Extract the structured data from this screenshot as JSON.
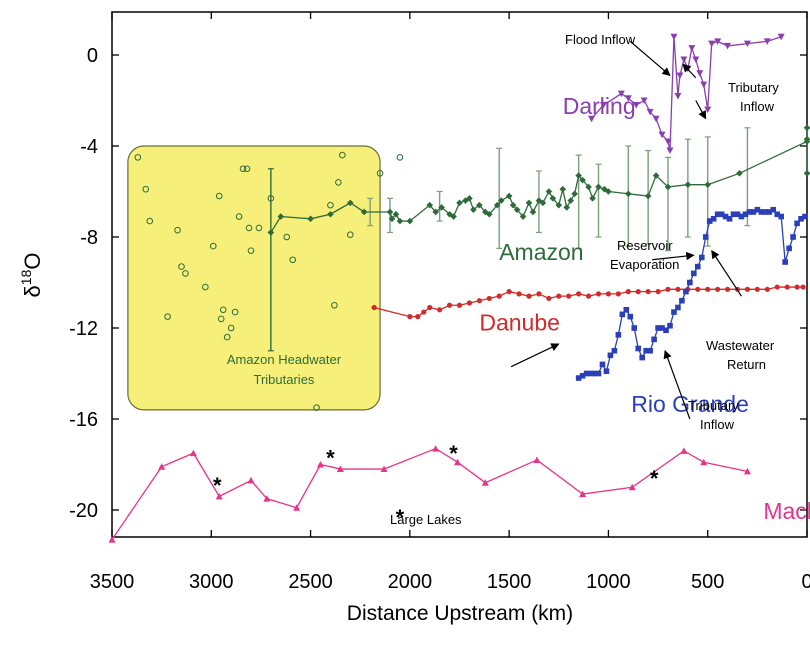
{
  "chart_data": {
    "type": "line",
    "title": "",
    "xlabel": "Distance Upstream (km)",
    "ylabel": "δ18O",
    "ylabel_main": "δ",
    "ylabel_sup": "18",
    "ylabel_tail": "O",
    "xlim": [
      3500,
      0
    ],
    "ylim": [
      -22,
      2
    ],
    "x_ticks": [
      3500,
      3000,
      2500,
      2000,
      1500,
      1000,
      500,
      0
    ],
    "x_tick_labels": [
      "3500",
      "3000",
      "2500",
      "2000",
      "1500",
      "1000",
      "500",
      "0"
    ],
    "y_ticks": [
      0,
      -4,
      -8,
      -12,
      -16,
      -20
    ],
    "y_tick_labels": [
      "0",
      "-4",
      "-8",
      "-12",
      "-16",
      "-20"
    ],
    "grid": false,
    "colors": {
      "amazon": "#2e6b3a",
      "amazon_errorbar": "#7aa07a",
      "darling": "#8a3fb0",
      "danube": "#d42a2a",
      "rio_grande": "#2a3fb8",
      "mackenzie": "#e8338a",
      "headwater_box": "#f6f07a",
      "headwater_border": "#6b6b3a"
    },
    "series": [
      {
        "name": "Darling",
        "marker": "triangle-down",
        "x": [
          1085,
          1025,
          935,
          900,
          860,
          820,
          790,
          760,
          730,
          700,
          690,
          670,
          650,
          640,
          620,
          600,
          580,
          560,
          540,
          520,
          500,
          480,
          450,
          400,
          300,
          200,
          130
        ],
        "y": [
          -2.8,
          -2.2,
          -1.7,
          -1.9,
          -2.2,
          -2.0,
          -2.5,
          -2.8,
          -3.5,
          -3.8,
          -4.2,
          0.8,
          -1.8,
          -0.9,
          -0.2,
          -0.6,
          0.3,
          -0.2,
          -0.8,
          -1.3,
          -2.4,
          0.5,
          0.6,
          0.4,
          0.5,
          0.6,
          0.8
        ]
      },
      {
        "name": "Amazon",
        "marker": "diamond",
        "x": [
          2700,
          2650,
          2500,
          2400,
          2300,
          2230,
          2100,
          2090,
          2070,
          2050,
          2000,
          1900,
          1870,
          1840,
          1800,
          1780,
          1750,
          1720,
          1700,
          1680,
          1650,
          1620,
          1600,
          1560,
          1540,
          1500,
          1480,
          1460,
          1430,
          1400,
          1380,
          1350,
          1330,
          1300,
          1280,
          1250,
          1230,
          1210,
          1190,
          1170,
          1150,
          1130,
          1100,
          1080,
          1050,
          1020,
          1000,
          900,
          800,
          760,
          700,
          600,
          500,
          340,
          0,
          0,
          0,
          0
        ],
        "y": [
          -7.8,
          -7.1,
          -7.2,
          -7.0,
          -6.5,
          -6.9,
          -6.9,
          -7.2,
          -7.0,
          -7.3,
          -7.3,
          -6.6,
          -6.9,
          -6.7,
          -7.0,
          -7.1,
          -6.5,
          -6.4,
          -6.3,
          -6.8,
          -6.6,
          -6.9,
          -7.0,
          -6.6,
          -6.4,
          -6.2,
          -6.6,
          -6.8,
          -7.1,
          -6.5,
          -6.9,
          -6.4,
          -6.5,
          -6.0,
          -6.3,
          -6.6,
          -5.9,
          -6.7,
          -6.4,
          -6.1,
          -5.3,
          -5.5,
          -5.8,
          -6.3,
          -5.8,
          -5.9,
          -6.0,
          -6.1,
          -6.2,
          -5.3,
          -5.8,
          -5.7,
          -5.7,
          -5.2,
          -3.8,
          -3.2,
          -3.7,
          -5.2
        ],
        "errors": [
          {
            "x": 2700,
            "low": -13.0,
            "high": -5.0
          },
          {
            "x": 2200,
            "low": -7.5,
            "high": -6.3
          },
          {
            "x": 2100,
            "low": -7.8,
            "high": -6.3
          },
          {
            "x": 1850,
            "low": -7.3,
            "high": -6.0
          },
          {
            "x": 1550,
            "low": -8.5,
            "high": -4.1
          },
          {
            "x": 1350,
            "low": -7.8,
            "high": -5.1
          },
          {
            "x": 1150,
            "low": -8.5,
            "high": -4.4
          },
          {
            "x": 1050,
            "low": -8.0,
            "high": -4.8
          },
          {
            "x": 900,
            "low": -8.4,
            "high": -4.0
          },
          {
            "x": 800,
            "low": -8.3,
            "high": -4.2
          },
          {
            "x": 700,
            "low": -8.6,
            "high": -4.5
          },
          {
            "x": 600,
            "low": -8.0,
            "high": -3.7
          },
          {
            "x": 500,
            "low": -8.4,
            "high": -3.6
          },
          {
            "x": 300,
            "low": -7.5,
            "high": -3.2
          }
        ]
      },
      {
        "name": "Amazon Headwater Tributaries",
        "marker": "open-circle",
        "x": [
          3370,
          3330,
          3310,
          3170,
          3150,
          3130,
          3030,
          2990,
          2960,
          2950,
          2940,
          2920,
          2900,
          2880,
          2860,
          2840,
          2820,
          2810,
          2800,
          2760,
          2700,
          2620,
          2590,
          2400,
          2380,
          2360,
          2340,
          2300,
          2150,
          2050,
          3220,
          2470
        ],
        "y": [
          -4.5,
          -5.9,
          -7.3,
          -7.7,
          -9.3,
          -9.6,
          -10.2,
          -8.4,
          -6.2,
          -11.6,
          -11.2,
          -12.4,
          -12.0,
          -11.3,
          -7.1,
          -5.0,
          -5.0,
          -7.6,
          -8.6,
          -7.6,
          -6.3,
          -8.0,
          -9.0,
          -6.6,
          -11.0,
          -5.6,
          -4.4,
          -7.9,
          -5.2,
          -4.5,
          -11.5,
          -15.5
        ]
      },
      {
        "name": "Danube",
        "marker": "circle",
        "x": [
          2180,
          2000,
          1960,
          1930,
          1900,
          1850,
          1800,
          1750,
          1700,
          1650,
          1600,
          1550,
          1500,
          1450,
          1400,
          1350,
          1300,
          1250,
          1200,
          1150,
          1100,
          1050,
          1000,
          950,
          900,
          850,
          800,
          750,
          700,
          650,
          600,
          550,
          500,
          450,
          400,
          350,
          300,
          250,
          200,
          150,
          100,
          50,
          20
        ],
        "y": [
          -11.1,
          -11.5,
          -11.5,
          -11.3,
          -11.1,
          -11.2,
          -11.0,
          -11.0,
          -10.9,
          -10.8,
          -10.7,
          -10.6,
          -10.4,
          -10.5,
          -10.6,
          -10.5,
          -10.7,
          -10.6,
          -10.6,
          -10.5,
          -10.6,
          -10.5,
          -10.5,
          -10.5,
          -10.4,
          -10.4,
          -10.4,
          -10.4,
          -10.3,
          -10.3,
          -10.3,
          -10.3,
          -10.3,
          -10.3,
          -10.3,
          -10.3,
          -10.3,
          -10.3,
          -10.3,
          -10.2,
          -10.2,
          -10.2,
          -10.2
        ]
      },
      {
        "name": "Rio Grande",
        "marker": "square",
        "x": [
          1150,
          1130,
          1110,
          1090,
          1070,
          1050,
          1030,
          1010,
          990,
          970,
          950,
          930,
          910,
          890,
          870,
          850,
          830,
          810,
          790,
          770,
          750,
          730,
          710,
          690,
          670,
          650,
          630,
          610,
          590,
          570,
          550,
          530,
          510,
          490,
          470,
          450,
          430,
          410,
          390,
          370,
          350,
          330,
          310,
          290,
          270,
          250,
          230,
          210,
          190,
          170,
          150,
          130,
          110,
          90,
          70,
          50,
          30,
          10
        ],
        "y": [
          -14.2,
          -14.1,
          -14.0,
          -14.0,
          -14.0,
          -14.0,
          -13.6,
          -13.9,
          -13.2,
          -13.0,
          -12.3,
          -11.4,
          -11.2,
          -11.5,
          -12.0,
          -12.9,
          -13.3,
          -13.0,
          -13.0,
          -12.5,
          -12.0,
          -12.0,
          -12.1,
          -11.9,
          -11.3,
          -11.1,
          -10.8,
          -10.4,
          -10.0,
          -9.6,
          -9.3,
          -8.9,
          -8.0,
          -7.3,
          -7.2,
          -7.0,
          -7.0,
          -7.1,
          -7.2,
          -7.0,
          -7.0,
          -7.1,
          -7.0,
          -6.9,
          -6.9,
          -6.8,
          -6.9,
          -6.9,
          -6.9,
          -6.8,
          -7.0,
          -7.1,
          -9.1,
          -8.5,
          -8.0,
          -7.4,
          -7.2,
          -7.1
        ]
      },
      {
        "name": "Mackenzie",
        "marker": "triangle",
        "x": [
          3500,
          3250,
          3090,
          2960,
          2800,
          2720,
          2570,
          2450,
          2350,
          2130,
          1870,
          1760,
          1620,
          1360,
          1130,
          880,
          620,
          520,
          300
        ],
        "y": [
          -21.3,
          -18.1,
          -17.5,
          -19.4,
          -18.7,
          -19.5,
          -19.9,
          -18.0,
          -18.2,
          -18.2,
          -17.3,
          -17.9,
          -18.8,
          -17.8,
          -19.3,
          -19.0,
          -17.4,
          -17.9,
          -18.3
        ]
      }
    ],
    "series_labels": [
      {
        "name": "Darling",
        "x": 1230,
        "y": -2.6
      },
      {
        "name": "Amazon",
        "x": 1550,
        "y": -9.0
      },
      {
        "name": "Danube",
        "x": 1650,
        "y": -12.1
      },
      {
        "name": "Rio Grande",
        "x": 885,
        "y": -15.7
      },
      {
        "name": "Mackenzie",
        "x": 220,
        "y": -20.4
      }
    ],
    "headwater_box": {
      "x0": 3420,
      "x1": 2150,
      "y0": -4.0,
      "y1": -15.6
    },
    "headwater_label_line1": "Amazon Headwater",
    "headwater_label_line2": "Tributaries",
    "asterisks": [
      {
        "x": 2970,
        "y": -18.9
      },
      {
        "x": 2400,
        "y": -17.7
      },
      {
        "x": 1780,
        "y": -17.5
      },
      {
        "x": 770,
        "y": -18.6
      },
      {
        "x": 2050,
        "y": -20.3
      }
    ],
    "annotations": {
      "large_lakes": "Large Lakes",
      "flood_inflow": "Flood Inflow",
      "tributary_inflow_top_1": "Tributary",
      "tributary_inflow_top_2": "Inflow",
      "reservoir_1": "Reservoir",
      "reservoir_2": "Evaporation",
      "wastewater_1": "Wastewater",
      "wastewater_2": "Return",
      "tributary_inflow_bottom_1": "Tributary",
      "tributary_inflow_bottom_2": "Inflow"
    },
    "arrows": [
      {
        "from": [
          890,
          0.6
        ],
        "to": [
          690,
          -0.9
        ]
      },
      {
        "from": [
          560,
          -1.0
        ],
        "to": [
          625,
          -0.4
        ]
      },
      {
        "from": [
          560,
          -2.0
        ],
        "to": [
          510,
          -2.8
        ]
      },
      {
        "from": [
          780,
          -9.0
        ],
        "to": [
          570,
          -8.8
        ]
      },
      {
        "from": [
          330,
          -10.6
        ],
        "to": [
          480,
          -8.6
        ]
      },
      {
        "from": [
          1490,
          -13.7
        ],
        "to": [
          1250,
          -12.7
        ]
      },
      {
        "from": [
          590,
          -16.0
        ],
        "to": [
          715,
          -13.0
        ]
      }
    ]
  }
}
